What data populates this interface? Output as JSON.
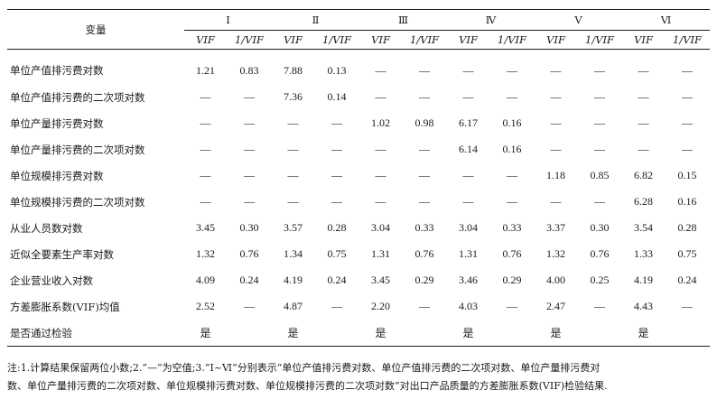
{
  "header": {
    "variable": "变量",
    "groups": [
      "Ⅰ",
      "Ⅱ",
      "Ⅲ",
      "Ⅳ",
      "Ⅴ",
      "Ⅵ"
    ],
    "sub": [
      "VIF",
      "1/VIF"
    ]
  },
  "rows": [
    {
      "label": "单位产值排污费对数",
      "values": [
        "1.21",
        "0.83",
        "7.88",
        "0.13",
        "—",
        "—",
        "—",
        "—",
        "—",
        "—",
        "—",
        "—"
      ]
    },
    {
      "label": "单位产值排污费的二次项对数",
      "values": [
        "—",
        "—",
        "7.36",
        "0.14",
        "—",
        "—",
        "—",
        "—",
        "—",
        "—",
        "—",
        "—"
      ]
    },
    {
      "label": "单位产量排污费对数",
      "values": [
        "—",
        "—",
        "—",
        "—",
        "1.02",
        "0.98",
        "6.17",
        "0.16",
        "—",
        "—",
        "—",
        "—"
      ]
    },
    {
      "label": "单位产量排污费的二次项对数",
      "values": [
        "—",
        "—",
        "—",
        "—",
        "—",
        "—",
        "6.14",
        "0.16",
        "—",
        "—",
        "—",
        "—"
      ]
    },
    {
      "label": "单位规模排污费对数",
      "values": [
        "—",
        "—",
        "—",
        "—",
        "—",
        "—",
        "—",
        "—",
        "1.18",
        "0.85",
        "6.82",
        "0.15"
      ]
    },
    {
      "label": "单位规模排污费的二次项对数",
      "values": [
        "—",
        "—",
        "—",
        "—",
        "—",
        "—",
        "—",
        "—",
        "—",
        "—",
        "6.28",
        "0.16"
      ]
    },
    {
      "label": "从业人员数对数",
      "values": [
        "3.45",
        "0.30",
        "3.57",
        "0.28",
        "3.04",
        "0.33",
        "3.04",
        "0.33",
        "3.37",
        "0.30",
        "3.54",
        "0.28"
      ]
    },
    {
      "label": "近似全要素生产率对数",
      "values": [
        "1.32",
        "0.76",
        "1.34",
        "0.75",
        "1.31",
        "0.76",
        "1.31",
        "0.76",
        "1.32",
        "0.76",
        "1.33",
        "0.75"
      ]
    },
    {
      "label": "企业营业收入对数",
      "values": [
        "4.09",
        "0.24",
        "4.19",
        "0.24",
        "3.45",
        "0.29",
        "3.46",
        "0.29",
        "4.00",
        "0.25",
        "4.19",
        "0.24"
      ]
    },
    {
      "label": "方差膨胀系数(VIF)均值",
      "values": [
        "2.52",
        "—",
        "4.87",
        "—",
        "2.20",
        "—",
        "4.03",
        "—",
        "2.47",
        "—",
        "4.43",
        "—"
      ]
    },
    {
      "label": "是否通过检验",
      "values": [
        "是",
        "",
        "是",
        "",
        "是",
        "",
        "是",
        "",
        "是",
        "",
        "是",
        ""
      ]
    }
  ],
  "note": {
    "line1": "注:1.计算结果保留两位小数;2.“—”为空值;3.“Ⅰ~Ⅵ”分别表示“单位产值排污费对数、单位产值排污费的二次项对数、单位产量排污费对",
    "line2": "数、单位产量排污费的二次项对数、单位规模排污费对数、单位规模排污费的二次项对数”对出口产品质量的方差膨胀系数(VIF)检验结果."
  }
}
